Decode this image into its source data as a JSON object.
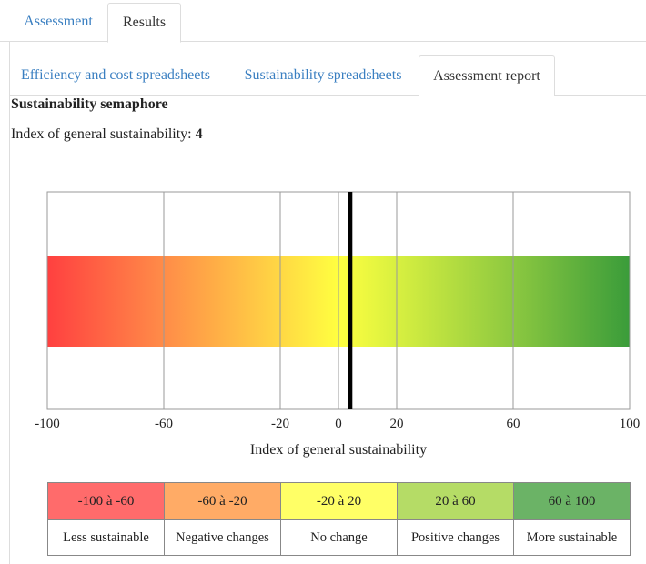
{
  "tabs": {
    "assessment": "Assessment",
    "results": "Results"
  },
  "subtabs": {
    "efficiency": "Efficiency and cost spreadsheets",
    "sustainability": "Sustainability spreadsheets",
    "report": "Assessment report"
  },
  "report": {
    "heading": "Sustainability semaphore",
    "index_label": "Index of general sustainability:",
    "index_value": "4"
  },
  "chart_data": {
    "type": "bar",
    "title": "",
    "xlabel": "Index of general sustainability",
    "ylabel": "",
    "xlim": [
      -100,
      100
    ],
    "xticks": [
      -100,
      -60,
      -20,
      0,
      20,
      60,
      100
    ],
    "xtick_labels": [
      "-100",
      "-60",
      "-20",
      "0",
      "20",
      "60",
      "100"
    ],
    "grid": true,
    "gradient_stops": [
      {
        "value": -100,
        "color": "#ff4040"
      },
      {
        "value": -60,
        "color": "#ff8c48"
      },
      {
        "value": -20,
        "color": "#ffd844"
      },
      {
        "value": 0,
        "color": "#ffff40"
      },
      {
        "value": 20,
        "color": "#d8f040"
      },
      {
        "value": 60,
        "color": "#8cc840"
      },
      {
        "value": 100,
        "color": "#3a9c3a"
      }
    ],
    "marker_value": 4
  },
  "legend": {
    "ranges": [
      {
        "label": "-100 à -60",
        "color": "#ff6b6b"
      },
      {
        "label": "-60 à -20",
        "color": "#ffab66"
      },
      {
        "label": "-20 à 20",
        "color": "#ffff66"
      },
      {
        "label": "20 à 60",
        "color": "#b5dc66"
      },
      {
        "label": "60 à 100",
        "color": "#6bb366"
      }
    ],
    "names": [
      "Less sustainable",
      "Negative changes",
      "No change",
      "Positive changes",
      "More sustainable"
    ]
  }
}
